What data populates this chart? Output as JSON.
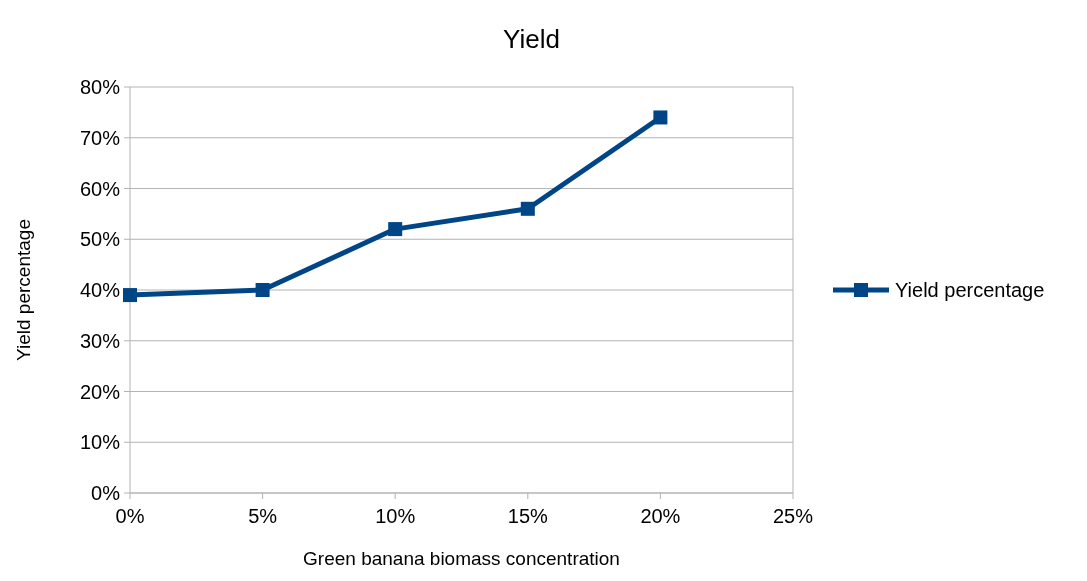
{
  "chart_data": {
    "type": "line",
    "title": "Yield",
    "xlabel": "Green banana biomass concentration",
    "ylabel": "Yield percentage",
    "x": [
      0,
      5,
      10,
      15,
      20
    ],
    "series": [
      {
        "name": "Yield percentage",
        "color": "#004586",
        "values": [
          39,
          40,
          52,
          56,
          74
        ]
      }
    ],
    "xlim": [
      0,
      25
    ],
    "xticks": [
      {
        "value": 0,
        "label": "0%"
      },
      {
        "value": 5,
        "label": "5%"
      },
      {
        "value": 10,
        "label": "10%"
      },
      {
        "value": 15,
        "label": "15%"
      },
      {
        "value": 20,
        "label": "20%"
      },
      {
        "value": 25,
        "label": "25%"
      }
    ],
    "ylim": [
      0,
      80
    ],
    "yticks": [
      {
        "value": 0,
        "label": "0%"
      },
      {
        "value": 10,
        "label": "10%"
      },
      {
        "value": 20,
        "label": "20%"
      },
      {
        "value": 30,
        "label": "30%"
      },
      {
        "value": 40,
        "label": "40%"
      },
      {
        "value": 50,
        "label": "50%"
      },
      {
        "value": 60,
        "label": "60%"
      },
      {
        "value": 70,
        "label": "70%"
      },
      {
        "value": 80,
        "label": "80%"
      }
    ],
    "grid": "y",
    "legend": "right",
    "marker": "square",
    "line_style": "solid"
  }
}
